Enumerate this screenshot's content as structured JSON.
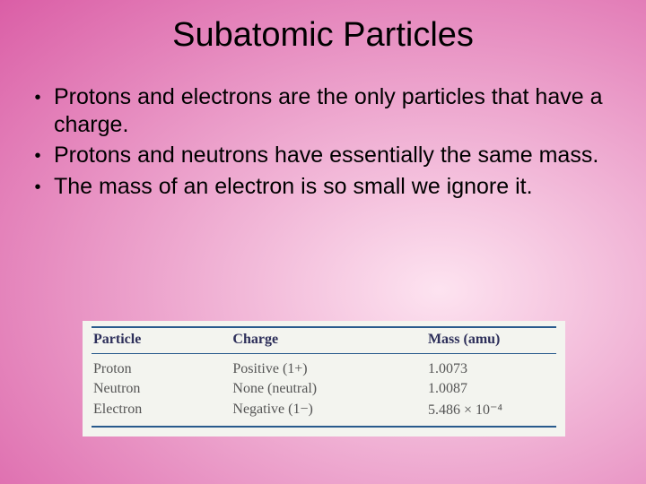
{
  "slide": {
    "background_gradient": {
      "type": "radial",
      "center": "68% 60%",
      "inner_color": "#fde3f0",
      "outer_color": "#d13a92"
    },
    "title_color": "#000000",
    "body_color": "#000000",
    "title_fontsize": 38,
    "body_fontsize": 25
  },
  "title": "Subatomic Particles",
  "bullets": [
    "Protons and electrons are the only particles that have a charge.",
    "Protons and neutrons have essentially the same mass.",
    "The mass of an electron is so small we ignore it."
  ],
  "table": {
    "background_color": "#f3f4ef",
    "header_color": "#2d2f5a",
    "body_text_color": "#555555",
    "rule_color": "#285a8c",
    "font_family": "Times New Roman",
    "header_fontsize": 16,
    "body_fontsize": 16,
    "columns": [
      {
        "key": "particle",
        "label": "Particle",
        "width_pct": 30
      },
      {
        "key": "charge",
        "label": "Charge",
        "width_pct": 42
      },
      {
        "key": "mass",
        "label": "Mass (amu)",
        "width_pct": 28
      }
    ],
    "rows": [
      {
        "particle": "Proton",
        "charge": "Positive (1+)",
        "mass": "1.0073"
      },
      {
        "particle": "Neutron",
        "charge": "None (neutral)",
        "mass": "1.0087"
      },
      {
        "particle": "Electron",
        "charge": "Negative (1−)",
        "mass": "5.486 × 10⁻⁴"
      }
    ]
  }
}
